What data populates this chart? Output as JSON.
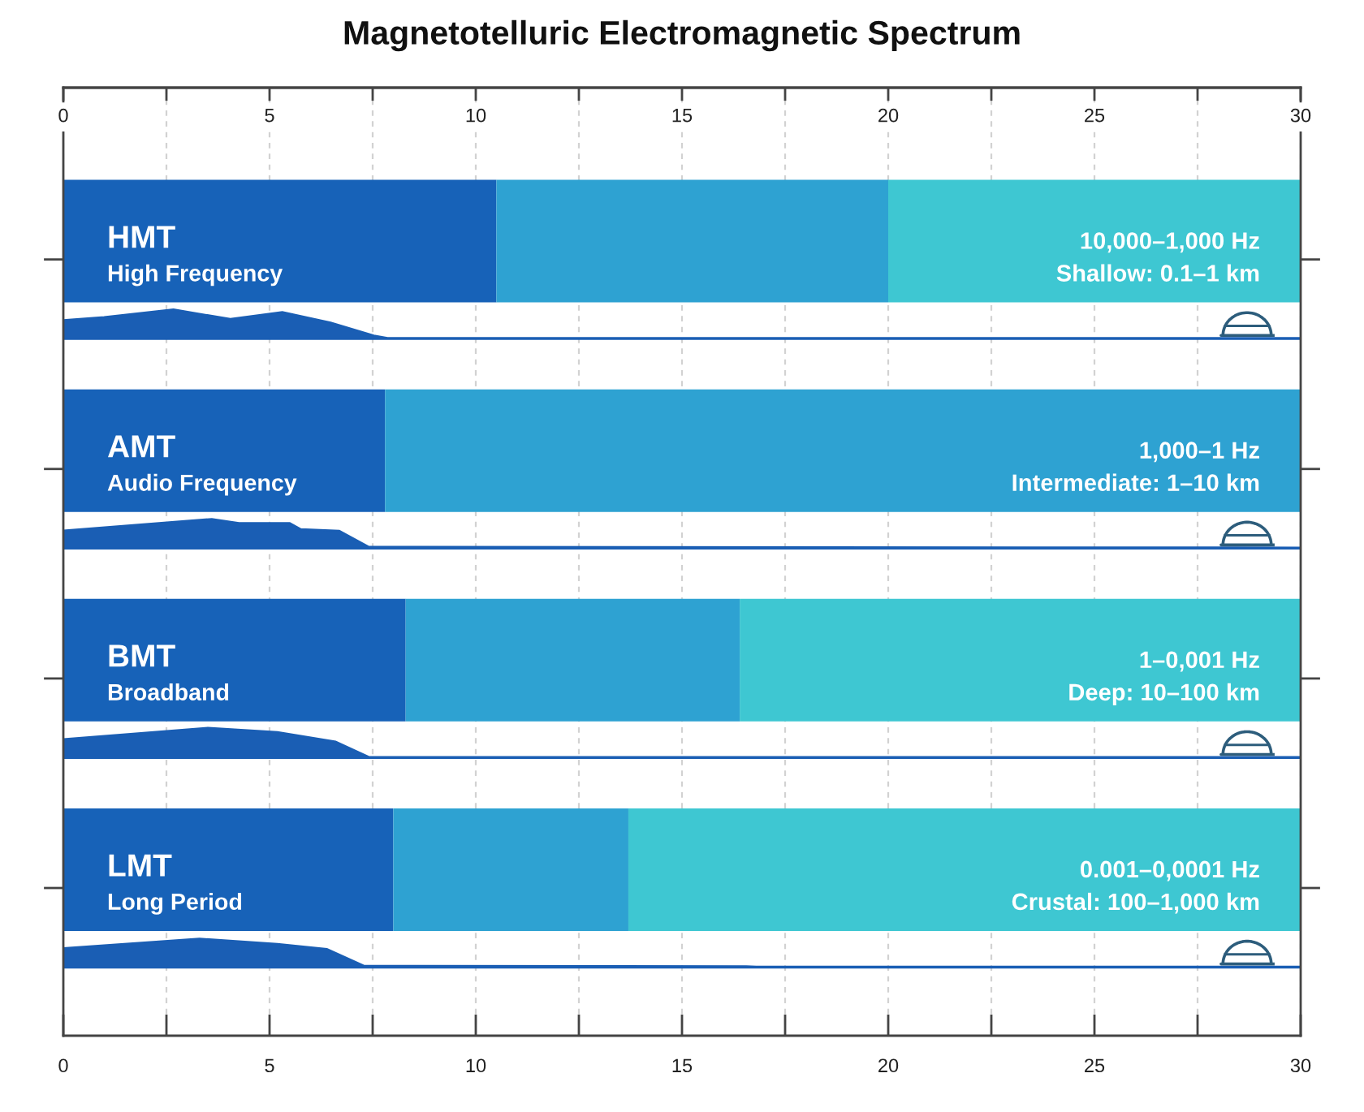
{
  "chart_data": {
    "type": "bar",
    "orientation": "horizontal",
    "stacked": true,
    "title": "Magnetotelluric Electromagnetic Spectrum",
    "categories": [
      "HMT",
      "AMT",
      "BMT",
      "LMT"
    ],
    "series": [
      {
        "color": "#1762b8",
        "values": [
          10.5,
          7.8,
          8.3,
          8.0
        ]
      },
      {
        "color": "#2ea2d2",
        "values": [
          9.5,
          22.2,
          8.1,
          5.7
        ]
      },
      {
        "color": "#3ec7d2",
        "values": [
          10.0,
          null,
          13.6,
          16.3
        ]
      }
    ],
    "xlim": [
      0,
      30
    ],
    "xticks": [
      0,
      {
        "value": 2.5,
        "label": null
      },
      5,
      {
        "value": 7.5,
        "label": null
      },
      10,
      {
        "value": 12.5,
        "label": null
      },
      15,
      {
        "value": 17.5,
        "label": null
      },
      20,
      {
        "value": 22.5,
        "label": null
      },
      25,
      {
        "value": 27.5,
        "label": null
      },
      30
    ],
    "x2lim": [
      0,
      30
    ],
    "x2ticks": [
      0,
      {
        "value": 2.5,
        "label": null
      },
      5,
      {
        "value": 7.5,
        "label": null
      },
      10,
      {
        "value": 12.5,
        "label": null
      },
      15,
      {
        "value": 17.5,
        "label": null
      },
      20,
      {
        "value": 22.5,
        "label": null
      },
      25,
      {
        "value": 27.5,
        "label": null
      },
      30
    ],
    "grid": "x",
    "tick_labels": "x",
    "annotations": [
      "High Frequency",
      "10,000–1,000 Hz",
      "Shallow: 0.1–1 km",
      "Audio Frequency",
      "1,000–1 Hz",
      "Intermediate: 1–10 km",
      "Broadband",
      "1–0,001 Hz",
      "Deep: 10–100 km",
      "Long Period",
      "0.001–0,0001 Hz",
      "Crustal: 100–1,000 km"
    ]
  }
}
